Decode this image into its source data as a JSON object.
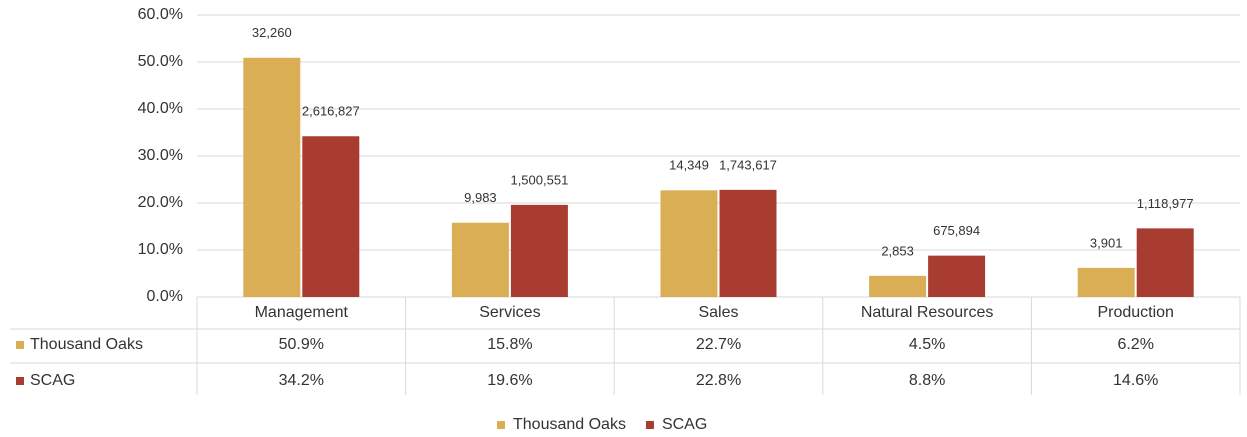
{
  "chart_data": {
    "type": "bar",
    "categories": [
      "Management",
      "Services",
      "Sales",
      "Natural Resources",
      "Production"
    ],
    "series": [
      {
        "name": "Thousand Oaks",
        "color": "#d9ae55",
        "values": [
          50.9,
          15.8,
          22.7,
          4.5,
          6.2
        ],
        "value_labels": [
          "50.9%",
          "15.8%",
          "22.7%",
          "4.5%",
          "6.2%"
        ],
        "count_labels": [
          "32,260",
          "9,983",
          "14,349",
          "2,853",
          "3,901"
        ]
      },
      {
        "name": "SCAG",
        "color": "#a93c30",
        "values": [
          34.2,
          19.6,
          22.8,
          8.8,
          14.6
        ],
        "value_labels": [
          "34.2%",
          "19.6%",
          "22.8%",
          "8.8%",
          "14.6%"
        ],
        "count_labels": [
          "2,616,827",
          "1,500,551",
          "1,743,617",
          "675,894",
          "1,118,977"
        ]
      }
    ],
    "ylim": [
      0,
      60
    ],
    "yticks": [
      {
        "value": 0,
        "label": "0.0%"
      },
      {
        "value": 10,
        "label": "10.0%"
      },
      {
        "value": 20,
        "label": "20.0%"
      },
      {
        "value": 30,
        "label": "30.0%"
      },
      {
        "value": 40,
        "label": "40.0%"
      },
      {
        "value": 50,
        "label": "50.0%"
      },
      {
        "value": 60,
        "label": "60.0%"
      }
    ],
    "grid": true,
    "legend": "bottom"
  }
}
